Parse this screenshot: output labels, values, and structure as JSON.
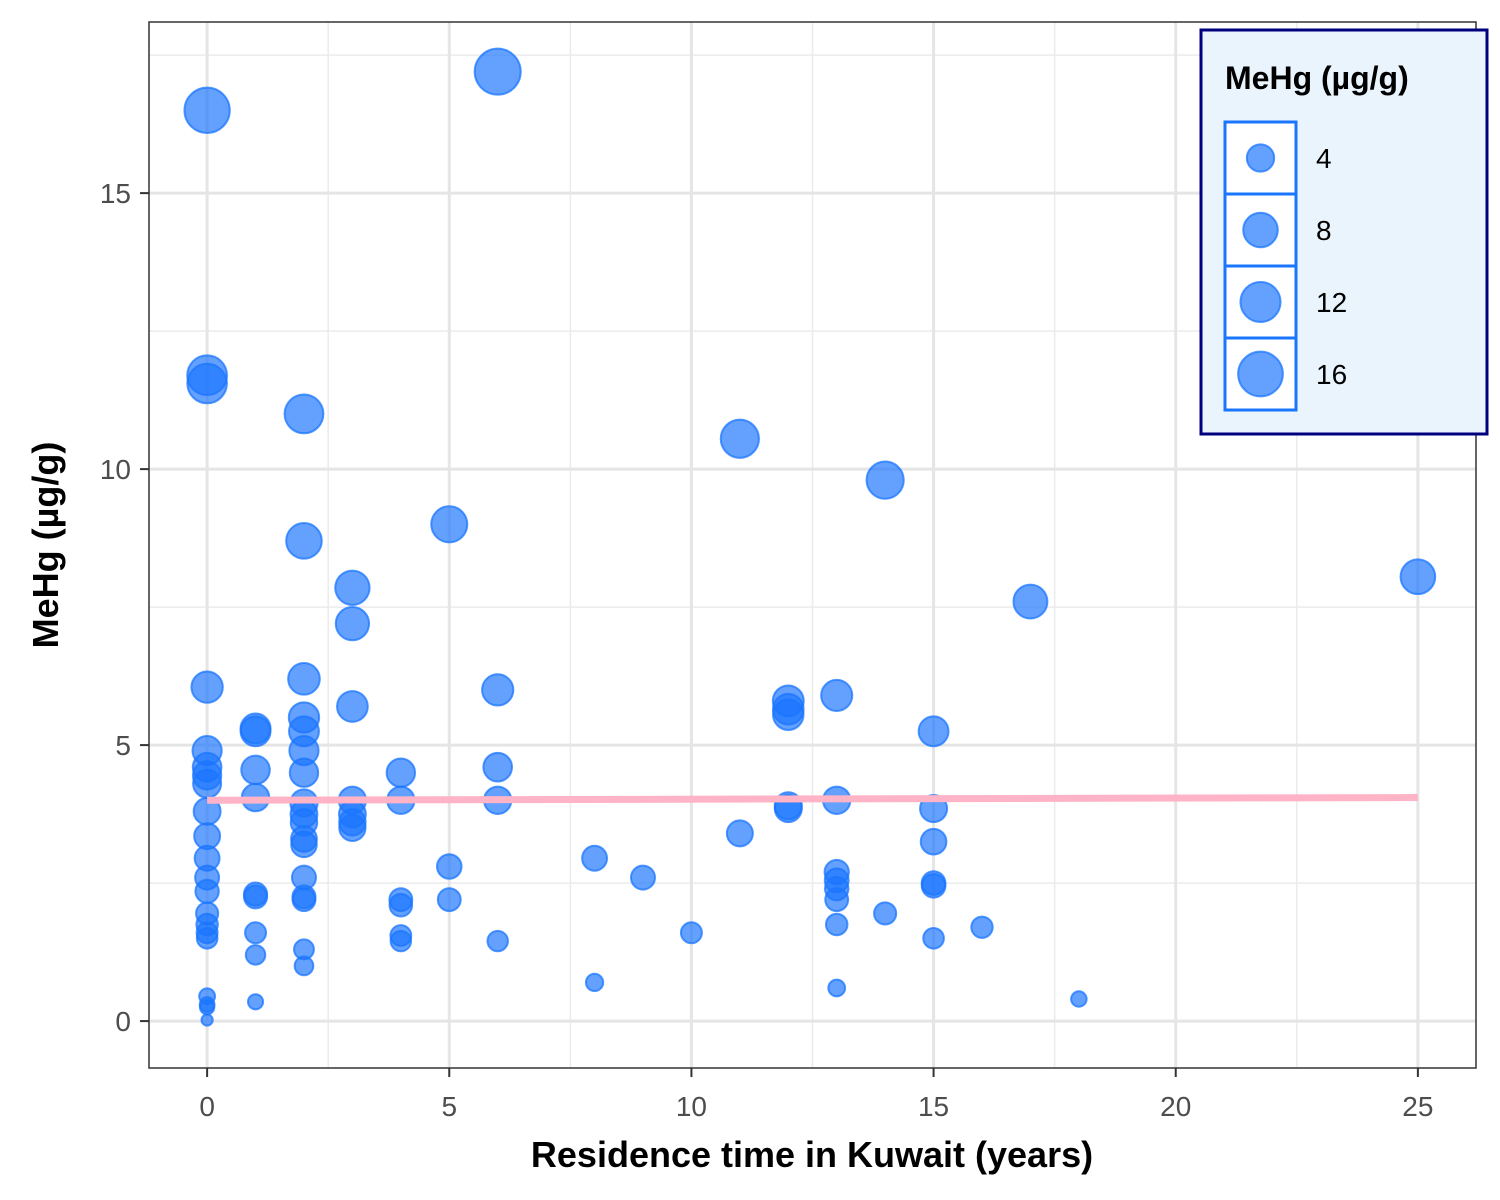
{
  "chart_data": {
    "type": "scatter",
    "xlabel": "Residence time in Kuwait (years)",
    "ylabel": "MeHg (µg/g)",
    "xlim": [
      -1.2,
      26.2
    ],
    "ylim": [
      -0.85,
      18.1
    ],
    "x_ticks": [
      0,
      5,
      10,
      15,
      20,
      25
    ],
    "x_tick_labels": [
      "0",
      "5",
      "10",
      "15",
      "20",
      "25"
    ],
    "y_ticks": [
      0,
      5,
      10,
      15
    ],
    "y_tick_labels": [
      "0",
      "5",
      "10",
      "15"
    ],
    "grid": true,
    "point_color": "#1a75ff",
    "trend_color": "#ffb3c6",
    "size_legend": {
      "title": "MeHg (µg/g)",
      "placement": "top-right",
      "background": "#eaf4fd",
      "border_color": "#00007f",
      "key_border_color": "#1a75ff",
      "items": [
        {
          "label": "4",
          "value": 4
        },
        {
          "label": "8",
          "value": 8
        },
        {
          "label": "12",
          "value": 12
        },
        {
          "label": "16",
          "value": 16
        }
      ]
    },
    "trend_line": {
      "x": [
        0,
        25
      ],
      "y": [
        4.0,
        4.05
      ]
    },
    "points": [
      {
        "x": 0,
        "y": 16.5
      },
      {
        "x": 0,
        "y": 11.7
      },
      {
        "x": 0,
        "y": 11.55
      },
      {
        "x": 0,
        "y": 6.05
      },
      {
        "x": 0,
        "y": 4.9
      },
      {
        "x": 0,
        "y": 4.6
      },
      {
        "x": 0,
        "y": 4.45
      },
      {
        "x": 0,
        "y": 4.3
      },
      {
        "x": 0,
        "y": 3.8
      },
      {
        "x": 0,
        "y": 3.35
      },
      {
        "x": 0,
        "y": 2.95
      },
      {
        "x": 0,
        "y": 2.6
      },
      {
        "x": 0,
        "y": 2.35
      },
      {
        "x": 0,
        "y": 1.95
      },
      {
        "x": 0,
        "y": 1.75
      },
      {
        "x": 0,
        "y": 1.6
      },
      {
        "x": 0,
        "y": 1.5
      },
      {
        "x": 0,
        "y": 0.45
      },
      {
        "x": 0,
        "y": 0.3
      },
      {
        "x": 0,
        "y": 0.25
      },
      {
        "x": 0,
        "y": 0.02
      },
      {
        "x": 1,
        "y": 5.3
      },
      {
        "x": 1,
        "y": 5.25
      },
      {
        "x": 1,
        "y": 4.55
      },
      {
        "x": 1,
        "y": 4.05
      },
      {
        "x": 1,
        "y": 2.3
      },
      {
        "x": 1,
        "y": 2.25
      },
      {
        "x": 1,
        "y": 1.6
      },
      {
        "x": 1,
        "y": 1.2
      },
      {
        "x": 1,
        "y": 0.35
      },
      {
        "x": 2,
        "y": 11.0
      },
      {
        "x": 2,
        "y": 8.7
      },
      {
        "x": 2,
        "y": 6.2
      },
      {
        "x": 2,
        "y": 5.5
      },
      {
        "x": 2,
        "y": 5.25
      },
      {
        "x": 2,
        "y": 4.9
      },
      {
        "x": 2,
        "y": 4.5
      },
      {
        "x": 2,
        "y": 3.95
      },
      {
        "x": 2,
        "y": 3.75
      },
      {
        "x": 2,
        "y": 3.6
      },
      {
        "x": 2,
        "y": 3.3
      },
      {
        "x": 2,
        "y": 3.2
      },
      {
        "x": 2,
        "y": 2.6
      },
      {
        "x": 2,
        "y": 2.25
      },
      {
        "x": 2,
        "y": 2.2
      },
      {
        "x": 2,
        "y": 1.3
      },
      {
        "x": 2,
        "y": 1.0
      },
      {
        "x": 3,
        "y": 7.85
      },
      {
        "x": 3,
        "y": 7.2
      },
      {
        "x": 3,
        "y": 5.7
      },
      {
        "x": 3,
        "y": 4.0
      },
      {
        "x": 3,
        "y": 3.75
      },
      {
        "x": 3,
        "y": 3.6
      },
      {
        "x": 3,
        "y": 3.5
      },
      {
        "x": 4,
        "y": 4.5
      },
      {
        "x": 4,
        "y": 4.0
      },
      {
        "x": 4,
        "y": 2.2
      },
      {
        "x": 4,
        "y": 2.1
      },
      {
        "x": 4,
        "y": 1.55
      },
      {
        "x": 4,
        "y": 1.45
      },
      {
        "x": 5,
        "y": 9.0
      },
      {
        "x": 5,
        "y": 2.8
      },
      {
        "x": 5,
        "y": 2.2
      },
      {
        "x": 6,
        "y": 17.2
      },
      {
        "x": 6,
        "y": 6.0
      },
      {
        "x": 6,
        "y": 4.6
      },
      {
        "x": 6,
        "y": 4.0
      },
      {
        "x": 6,
        "y": 1.45
      },
      {
        "x": 8,
        "y": 2.95
      },
      {
        "x": 8,
        "y": 0.7
      },
      {
        "x": 9,
        "y": 2.6
      },
      {
        "x": 10,
        "y": 1.6
      },
      {
        "x": 11,
        "y": 10.55
      },
      {
        "x": 11,
        "y": 3.4
      },
      {
        "x": 12,
        "y": 5.8
      },
      {
        "x": 12,
        "y": 5.65
      },
      {
        "x": 12,
        "y": 5.55
      },
      {
        "x": 12,
        "y": 3.9
      },
      {
        "x": 12,
        "y": 3.85
      },
      {
        "x": 13,
        "y": 5.9
      },
      {
        "x": 13,
        "y": 4.0
      },
      {
        "x": 13,
        "y": 2.7
      },
      {
        "x": 13,
        "y": 2.55
      },
      {
        "x": 13,
        "y": 2.4
      },
      {
        "x": 13,
        "y": 2.2
      },
      {
        "x": 13,
        "y": 1.75
      },
      {
        "x": 13,
        "y": 0.6
      },
      {
        "x": 14,
        "y": 9.8
      },
      {
        "x": 14,
        "y": 1.95
      },
      {
        "x": 15,
        "y": 5.25
      },
      {
        "x": 15,
        "y": 3.85
      },
      {
        "x": 15,
        "y": 3.25
      },
      {
        "x": 15,
        "y": 2.5
      },
      {
        "x": 15,
        "y": 2.45
      },
      {
        "x": 15,
        "y": 1.5
      },
      {
        "x": 16,
        "y": 1.7
      },
      {
        "x": 17,
        "y": 7.6
      },
      {
        "x": 18,
        "y": 0.4
      },
      {
        "x": 25,
        "y": 8.05
      }
    ]
  }
}
